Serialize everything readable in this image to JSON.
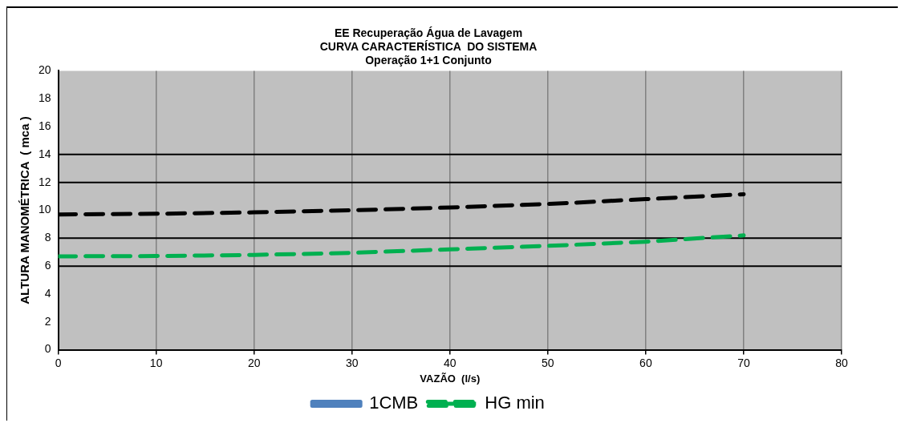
{
  "chart_data": {
    "type": "line",
    "title": "EE Recuperação Água de Lavagem\nCURVA CARACTERÍSTICA  DO SISTEMA\nOperação 1+1 Conjunto",
    "xlabel": "VAZÃO  (l/s)",
    "ylabel": "ALTURA MANOMÉTRICA  ( mca )",
    "x": [
      0,
      10,
      20,
      30,
      40,
      50,
      60,
      70
    ],
    "series": [
      {
        "name": "1CMB",
        "color": "#4f81bd",
        "line_style": "solid",
        "values": [
          null,
          null,
          null,
          null,
          null,
          null,
          null,
          null
        ]
      },
      {
        "color": "#000000",
        "line_style": "dashed",
        "values": [
          9.7,
          9.75,
          9.85,
          10.0,
          10.2,
          10.45,
          10.8,
          11.15
        ]
      },
      {
        "name": "HG min",
        "color": "#00b050",
        "line_style": "dashed",
        "values": [
          6.7,
          6.72,
          6.8,
          6.95,
          7.2,
          7.45,
          7.75,
          8.2
        ]
      }
    ],
    "xlim": [
      0,
      80
    ],
    "xticks": [
      0,
      10,
      20,
      30,
      40,
      50,
      60,
      70,
      80
    ],
    "ylim": [
      0,
      20
    ],
    "yticks": [
      0,
      2,
      4,
      6,
      8,
      10,
      12,
      14,
      16,
      18,
      20
    ],
    "ref_lines": [
      {
        "axis": "y",
        "value": 6,
        "color": "#000000"
      },
      {
        "axis": "y",
        "value": 8,
        "color": "#000000"
      },
      {
        "axis": "y",
        "value": 12,
        "color": "#000000"
      },
      {
        "axis": "y",
        "value": 14,
        "color": "#000000"
      }
    ],
    "grid": "x",
    "legend": "bottom",
    "marker": "none"
  }
}
